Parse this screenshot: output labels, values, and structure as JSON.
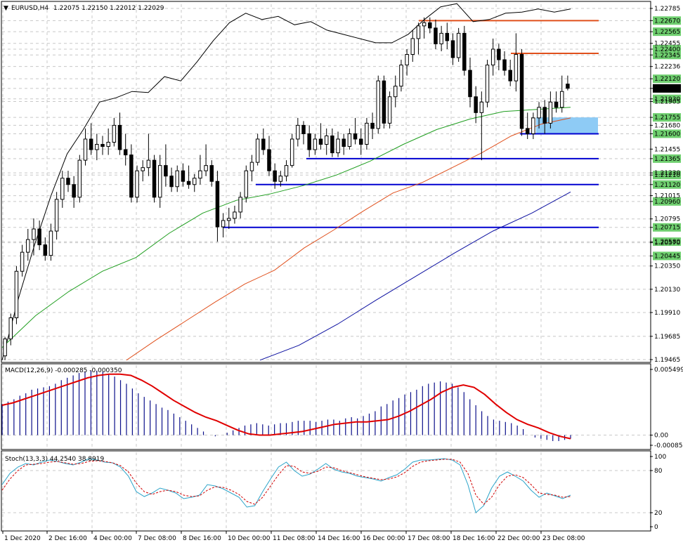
{
  "header": {
    "symbol": "EURUSD,H4",
    "ohlc": "1.22075 1.22150 1.22012 1.22029"
  },
  "colors": {
    "bull": "#ffffff",
    "bear": "#000000",
    "ma_fast": "#000000",
    "ma_mid": "#1f9e1f",
    "ma_slow": "#e0501c",
    "ma_long": "#0b0fa0",
    "macd_hist": "#0b0f8a",
    "macd_signal": "#e00000",
    "stoch_main": "#2aa3c9",
    "stoch_signal": "#d00000",
    "level_blue": "#0000d0",
    "level_orange": "#e0501c",
    "zone": "#8ecbf5",
    "price_tag_bg": "#6fcf6f"
  },
  "chart_data": [
    {
      "type": "candlestick",
      "title": "EURUSD,H4",
      "ylim": [
        1.19465,
        1.22785
      ],
      "y_ticks": [
        "1.22785",
        "1.22670",
        "1.22565",
        "1.22455",
        "1.22400",
        "1.22345",
        "1.22236",
        "1.22120",
        "1.22029",
        "1.21930",
        "1.21905",
        "1.21755",
        "1.21680",
        "1.21600",
        "1.21455",
        "1.21365",
        "1.21230",
        "1.21210",
        "1.21120",
        "1.21015",
        "1.20960",
        "1.20795",
        "1.20715",
        "1.20580",
        "1.20570",
        "1.20445",
        "1.20350",
        "1.20130",
        "1.19910",
        "1.19685",
        "1.19465"
      ],
      "label_tags": [
        "1.22670",
        "1.22565",
        "1.22400",
        "1.22345",
        "1.22120",
        "1.22029",
        "1.21930",
        "1.21755",
        "1.21600",
        "1.21365",
        "1.21210",
        "1.21120",
        "1.20960",
        "1.20715",
        "1.20580",
        "1.20445"
      ],
      "current_price": "1.22029",
      "x_labels": [
        "1 Dec 2020",
        "2 Dec 16:00",
        "4 Dec 00:00",
        "7 Dec 08:00",
        "8 Dec 16:00",
        "10 Dec 00:00",
        "11 Dec 08:00",
        "14 Dec 16:00",
        "16 Dec 00:00",
        "17 Dec 08:00",
        "18 Dec 16:00",
        "22 Dec 00:00",
        "23 Dec 08:00"
      ],
      "candles": [
        [
          1.195,
          1.1968,
          1.1946,
          1.1966
        ],
        [
          1.1966,
          1.199,
          1.196,
          1.1986
        ],
        [
          1.1986,
          1.2035,
          1.198,
          1.203
        ],
        [
          1.203,
          1.2055,
          1.2025,
          1.2048
        ],
        [
          1.2048,
          1.207,
          1.204,
          1.206
        ],
        [
          1.206,
          1.208,
          1.2045,
          1.207
        ],
        [
          1.207,
          1.2078,
          1.205,
          1.2055
        ],
        [
          1.2055,
          1.2062,
          1.204,
          1.2045
        ],
        [
          1.2045,
          1.2075,
          1.204,
          1.2068
        ],
        [
          1.2068,
          1.2105,
          1.206,
          1.2098
        ],
        [
          1.2098,
          1.2125,
          1.209,
          1.2118
        ],
        [
          1.2118,
          1.2125,
          1.2105,
          1.2112
        ],
        [
          1.2112,
          1.212,
          1.209,
          1.21
        ],
        [
          1.21,
          1.214,
          1.2095,
          1.2135
        ],
        [
          1.2135,
          1.2165,
          1.213,
          1.2155
        ],
        [
          1.2155,
          1.217,
          1.214,
          1.2145
        ],
        [
          1.2145,
          1.216,
          1.2135,
          1.215
        ],
        [
          1.215,
          1.2158,
          1.214,
          1.2148
        ],
        [
          1.2148,
          1.2165,
          1.214,
          1.2152
        ],
        [
          1.2152,
          1.2175,
          1.2148,
          1.2168
        ],
        [
          1.2168,
          1.218,
          1.214,
          1.2145
        ],
        [
          1.2145,
          1.216,
          1.213,
          1.214
        ],
        [
          1.214,
          1.215,
          1.2095,
          1.21
        ],
        [
          1.21,
          1.213,
          1.2095,
          1.2125
        ],
        [
          1.2125,
          1.2135,
          1.2115,
          1.2128
        ],
        [
          1.2128,
          1.216,
          1.212,
          1.2135
        ],
        [
          1.2135,
          1.214,
          1.2095,
          1.21
        ],
        [
          1.21,
          1.214,
          1.209,
          1.213
        ],
        [
          1.213,
          1.215,
          1.211,
          1.212
        ],
        [
          1.212,
          1.2128,
          1.2105,
          1.211
        ],
        [
          1.211,
          1.213,
          1.2105,
          1.2125
        ],
        [
          1.2125,
          1.2132,
          1.211,
          1.2115
        ],
        [
          1.2115,
          1.213,
          1.2108,
          1.2112
        ],
        [
          1.2112,
          1.2122,
          1.2105,
          1.2118
        ],
        [
          1.2118,
          1.214,
          1.2112,
          1.2125
        ],
        [
          1.2125,
          1.215,
          1.212,
          1.213
        ],
        [
          1.213,
          1.2135,
          1.211,
          1.2115
        ],
        [
          1.2115,
          1.2125,
          1.2058,
          1.2072
        ],
        [
          1.2072,
          1.2085,
          1.2062,
          1.2078
        ],
        [
          1.2078,
          1.209,
          1.207,
          1.208
        ],
        [
          1.208,
          1.2092,
          1.2075,
          1.2086
        ],
        [
          1.2086,
          1.2105,
          1.208,
          1.21
        ],
        [
          1.21,
          1.213,
          1.2095,
          1.2125
        ],
        [
          1.2125,
          1.214,
          1.2115,
          1.2133
        ],
        [
          1.2133,
          1.216,
          1.213,
          1.2155
        ],
        [
          1.2155,
          1.2165,
          1.214,
          1.2145
        ],
        [
          1.2145,
          1.2158,
          1.212,
          1.2125
        ],
        [
          1.2125,
          1.2132,
          1.2108,
          1.2115
        ],
        [
          1.2115,
          1.2125,
          1.211,
          1.212
        ],
        [
          1.212,
          1.2135,
          1.2115,
          1.213
        ],
        [
          1.213,
          1.216,
          1.2128,
          1.2155
        ],
        [
          1.2155,
          1.2175,
          1.2148,
          1.2168
        ],
        [
          1.2168,
          1.2172,
          1.215,
          1.216
        ],
        [
          1.216,
          1.2168,
          1.2138,
          1.2145
        ],
        [
          1.2145,
          1.216,
          1.214,
          1.2155
        ],
        [
          1.2155,
          1.217,
          1.2145,
          1.215
        ],
        [
          1.215,
          1.2165,
          1.214,
          1.2158
        ],
        [
          1.2158,
          1.2165,
          1.2138,
          1.2142
        ],
        [
          1.2142,
          1.2162,
          1.2138,
          1.2155
        ],
        [
          1.2155,
          1.216,
          1.214,
          1.2148
        ],
        [
          1.2148,
          1.2165,
          1.2145,
          1.216
        ],
        [
          1.216,
          1.2175,
          1.215,
          1.2155
        ],
        [
          1.2155,
          1.2165,
          1.214,
          1.215
        ],
        [
          1.215,
          1.2175,
          1.2145,
          1.217
        ],
        [
          1.217,
          1.218,
          1.2155,
          1.2165
        ],
        [
          1.2165,
          1.2215,
          1.216,
          1.221
        ],
        [
          1.221,
          1.2215,
          1.2165,
          1.217
        ],
        [
          1.217,
          1.22,
          1.2165,
          1.2195
        ],
        [
          1.2195,
          1.2215,
          1.2185,
          1.2205
        ],
        [
          1.2205,
          1.223,
          1.22,
          1.2225
        ],
        [
          1.2225,
          1.224,
          1.2215,
          1.2235
        ],
        [
          1.2235,
          1.2258,
          1.2228,
          1.225
        ],
        [
          1.225,
          1.2265,
          1.2235,
          1.2262
        ],
        [
          1.2262,
          1.227,
          1.225,
          1.2265
        ],
        [
          1.2265,
          1.227,
          1.2255,
          1.226
        ],
        [
          1.226,
          1.2268,
          1.224,
          1.2245
        ],
        [
          1.2245,
          1.2262,
          1.2238,
          1.2255
        ],
        [
          1.2255,
          1.2265,
          1.224,
          1.2248
        ],
        [
          1.2248,
          1.2255,
          1.2225,
          1.2232
        ],
        [
          1.2232,
          1.226,
          1.2228,
          1.2255
        ],
        [
          1.2255,
          1.2262,
          1.2215,
          1.222
        ],
        [
          1.222,
          1.2232,
          1.2185,
          1.2195
        ],
        [
          1.2195,
          1.2205,
          1.217,
          1.218
        ],
        [
          1.218,
          1.22,
          1.2135,
          1.219
        ],
        [
          1.219,
          1.223,
          1.2185,
          1.2225
        ],
        [
          1.2225,
          1.225,
          1.2215,
          1.224
        ],
        [
          1.224,
          1.2245,
          1.222,
          1.223
        ],
        [
          1.223,
          1.2238,
          1.2215,
          1.222
        ],
        [
          1.222,
          1.223,
          1.2205,
          1.221
        ],
        [
          1.221,
          1.2255,
          1.22,
          1.2235
        ],
        [
          1.2235,
          1.224,
          1.2158,
          1.2165
        ],
        [
          1.2165,
          1.218,
          1.2155,
          1.216
        ],
        [
          1.216,
          1.218,
          1.2155,
          1.2175
        ],
        [
          1.2175,
          1.219,
          1.2165,
          1.2185
        ],
        [
          1.2185,
          1.2192,
          1.216,
          1.217
        ],
        [
          1.217,
          1.22,
          1.2165,
          1.219
        ],
        [
          1.219,
          1.22,
          1.218,
          1.2185
        ],
        [
          1.2185,
          1.2215,
          1.218,
          1.22
        ],
        [
          1.2207,
          1.2215,
          1.2201,
          1.2203
        ]
      ],
      "moving_averages": [
        {
          "values": [
            1.1946,
            1.2004,
            1.2055,
            1.2101,
            1.2141,
            1.2164,
            1.219,
            1.2194,
            1.22,
            1.2199,
            1.2214,
            1.221,
            1.2228,
            1.2248,
            1.2265,
            1.2274,
            1.2268,
            1.2271,
            1.2263,
            1.2266,
            1.2258,
            1.2254,
            1.225,
            1.2246,
            1.2246,
            1.2254,
            1.2268,
            1.228,
            1.2283,
            1.2266,
            1.2268,
            1.2274,
            1.2275,
            1.2278,
            1.2275,
            1.2278
          ]
        },
        {
          "values": [
            1.1958,
            1.1988,
            1.2011,
            1.203,
            1.2043,
            1.2066,
            1.2085,
            1.2097,
            1.2103,
            1.2111,
            1.2121,
            1.2134,
            1.215,
            1.2164,
            1.2174,
            1.2181,
            1.2183,
            1.2185
          ]
        },
        {
          "values": [
            1.1946,
            1.1965,
            1.1983,
            1.2001,
            1.2018,
            1.2031,
            1.2052,
            1.2069,
            1.2087,
            1.2104,
            1.2114,
            1.2128,
            1.2142,
            1.2158,
            1.2169,
            1.2175
          ]
        },
        {
          "values": [
            1.1946,
            1.196,
            1.198,
            1.2003,
            1.2025,
            1.2047,
            1.2068,
            1.2085,
            1.2105
          ]
        }
      ],
      "horizontal_levels": [
        {
          "price": 1.2267,
          "color": "level_orange"
        },
        {
          "price": 1.2236,
          "color": "level_orange"
        },
        {
          "price": 1.216,
          "color": "level_blue"
        },
        {
          "price": 1.21365,
          "color": "level_blue"
        },
        {
          "price": 1.2112,
          "color": "level_blue"
        },
        {
          "price": 1.20715,
          "color": "level_blue"
        }
      ],
      "zone": {
        "from": 1.216,
        "to": 1.21755
      }
    },
    {
      "type": "bar",
      "title": "MACD(12,26,9) -0.000285 -0.000350",
      "y_ticks": [
        "0.005499",
        "0.00",
        "-0.000851"
      ],
      "ylim": [
        -0.000851,
        0.005499
      ],
      "histogram": [
        2.6,
        2.8,
        3.0,
        3.3,
        3.5,
        3.8,
        3.9,
        4.0,
        4.1,
        4.3,
        4.6,
        4.8,
        5.0,
        5.2,
        5.3,
        5.4,
        5.4,
        5.3,
        5.1,
        4.9,
        4.6,
        4.3,
        3.9,
        3.5,
        3.2,
        2.9,
        2.6,
        2.3,
        2.1,
        1.8,
        1.5,
        1.2,
        0.9,
        0.6,
        0.3,
        0.0,
        -0.1,
        0.0,
        0.2,
        0.4,
        0.6,
        0.8,
        0.9,
        1.0,
        0.9,
        0.8,
        0.9,
        1.0,
        1.0,
        1.1,
        1.2,
        1.2,
        1.2,
        1.1,
        1.2,
        1.3,
        1.3,
        1.2,
        1.4,
        1.5,
        1.4,
        1.6,
        1.8,
        2.0,
        2.4,
        2.6,
        2.9,
        3.1,
        3.4,
        3.6,
        3.8,
        4.1,
        4.3,
        4.4,
        4.5,
        4.4,
        4.3,
        4.0,
        3.6,
        3.0,
        2.5,
        2.0,
        1.6,
        1.3,
        1.2,
        1.1,
        1.0,
        0.8,
        0.5,
        0.0,
        -0.2,
        -0.3,
        -0.4,
        -0.5,
        -0.5,
        -0.4,
        -0.3
      ],
      "signal": [
        2.5,
        2.7,
        3.0,
        3.3,
        3.6,
        3.9,
        4.2,
        4.5,
        4.8,
        5.0,
        5.1,
        5.1,
        5.0,
        4.6,
        4.1,
        3.5,
        2.9,
        2.4,
        1.9,
        1.5,
        1.2,
        0.8,
        0.4,
        0.1,
        0.0,
        0.0,
        0.1,
        0.2,
        0.3,
        0.5,
        0.7,
        0.9,
        1.0,
        1.1,
        1.1,
        1.2,
        1.3,
        1.6,
        2.0,
        2.5,
        3.0,
        3.6,
        4.0,
        4.2,
        4.0,
        3.4,
        2.6,
        1.9,
        1.3,
        0.9,
        0.6,
        0.2,
        -0.1,
        -0.3
      ]
    },
    {
      "type": "line",
      "title": "Stoch(13,3,3) 44.2540 38.8919",
      "y_ticks": [
        "100",
        "80",
        "20",
        "0"
      ],
      "ylim": [
        0,
        100
      ],
      "series": [
        {
          "values": [
            60,
            76,
            85,
            90,
            88,
            92,
            95,
            93,
            90,
            88,
            92,
            97,
            95,
            92,
            91,
            85,
            72,
            50,
            43,
            48,
            55,
            52,
            48,
            40,
            42,
            45,
            60,
            58,
            54,
            48,
            42,
            28,
            30,
            50,
            68,
            85,
            92,
            80,
            72,
            75,
            82,
            90,
            82,
            78,
            76,
            72,
            70,
            68,
            65,
            70,
            74,
            82,
            92,
            95,
            95,
            96,
            97,
            95,
            88,
            60,
            20,
            30,
            55,
            72,
            78,
            72,
            65,
            52,
            42,
            48,
            44,
            40,
            45
          ]
        },
        {
          "values": [
            52,
            68,
            80,
            88,
            89,
            90,
            92,
            93,
            91,
            89,
            90,
            93,
            94,
            93,
            91,
            87,
            78,
            62,
            50,
            46,
            50,
            52,
            50,
            45,
            43,
            44,
            52,
            57,
            56,
            52,
            46,
            36,
            32,
            42,
            58,
            74,
            87,
            86,
            78,
            76,
            79,
            85,
            84,
            80,
            77,
            74,
            71,
            69,
            67,
            68,
            71,
            77,
            86,
            92,
            94,
            95,
            96,
            96,
            92,
            76,
            45,
            32,
            42,
            60,
            72,
            74,
            70,
            60,
            48,
            46,
            45,
            42,
            43
          ]
        }
      ]
    }
  ]
}
